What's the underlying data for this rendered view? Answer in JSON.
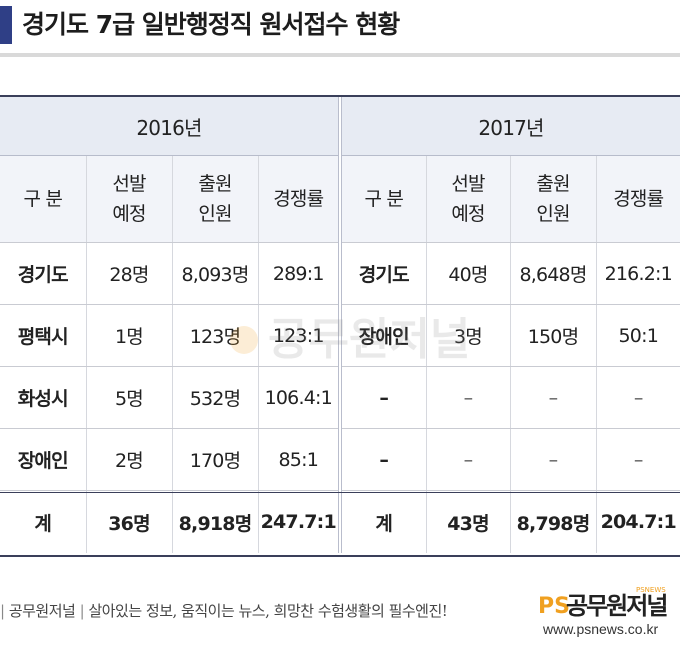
{
  "title": "경기도 7급 일반행정직 원서접수 현황",
  "years": [
    "2016년",
    "2017년"
  ],
  "headers": {
    "category": "구 분",
    "planned": [
      "선발",
      "예정"
    ],
    "applied": [
      "출원",
      "인원"
    ],
    "ratio": "경쟁률"
  },
  "rows_2016": [
    {
      "region": "경기도",
      "planned": "28명",
      "applied": "8,093명",
      "ratio": "289:1"
    },
    {
      "region": "평택시",
      "planned": "1명",
      "applied": "123명",
      "ratio": "123:1"
    },
    {
      "region": "화성시",
      "planned": "5명",
      "applied": "532명",
      "ratio": "106.4:1"
    },
    {
      "region": "장애인",
      "planned": "2명",
      "applied": "170명",
      "ratio": "85:1"
    }
  ],
  "rows_2017": [
    {
      "region": "경기도",
      "planned": "40명",
      "applied": "8,648명",
      "ratio": "216.2:1"
    },
    {
      "region": "장애인",
      "planned": "3명",
      "applied": "150명",
      "ratio": "50:1"
    },
    {
      "region": "–",
      "planned": "–",
      "applied": "–",
      "ratio": "–"
    },
    {
      "region": "–",
      "planned": "–",
      "applied": "–",
      "ratio": "–"
    }
  ],
  "total_2016": {
    "label": "계",
    "planned": "36명",
    "applied": "8,918명",
    "ratio": "247.7:1"
  },
  "total_2017": {
    "label": "계",
    "planned": "43명",
    "applied": "8,798명",
    "ratio": "204.7:1"
  },
  "watermark_text": "공무원저널",
  "footer": {
    "brand": "공무원저널",
    "slogan": "살아있는 정보, 움직이는 뉴스, 희망찬 수험생활의 필수엔진!",
    "logo_ps": "PS",
    "logo_name": "공무원저널",
    "logo_small": "PSNEWS",
    "url": "www.psnews.co.kr"
  },
  "colors": {
    "accent": "#2f3f86",
    "header_bg": "#e7ebf3",
    "subheader_bg": "#f2f4f9",
    "logo_orange": "#f0a020"
  }
}
